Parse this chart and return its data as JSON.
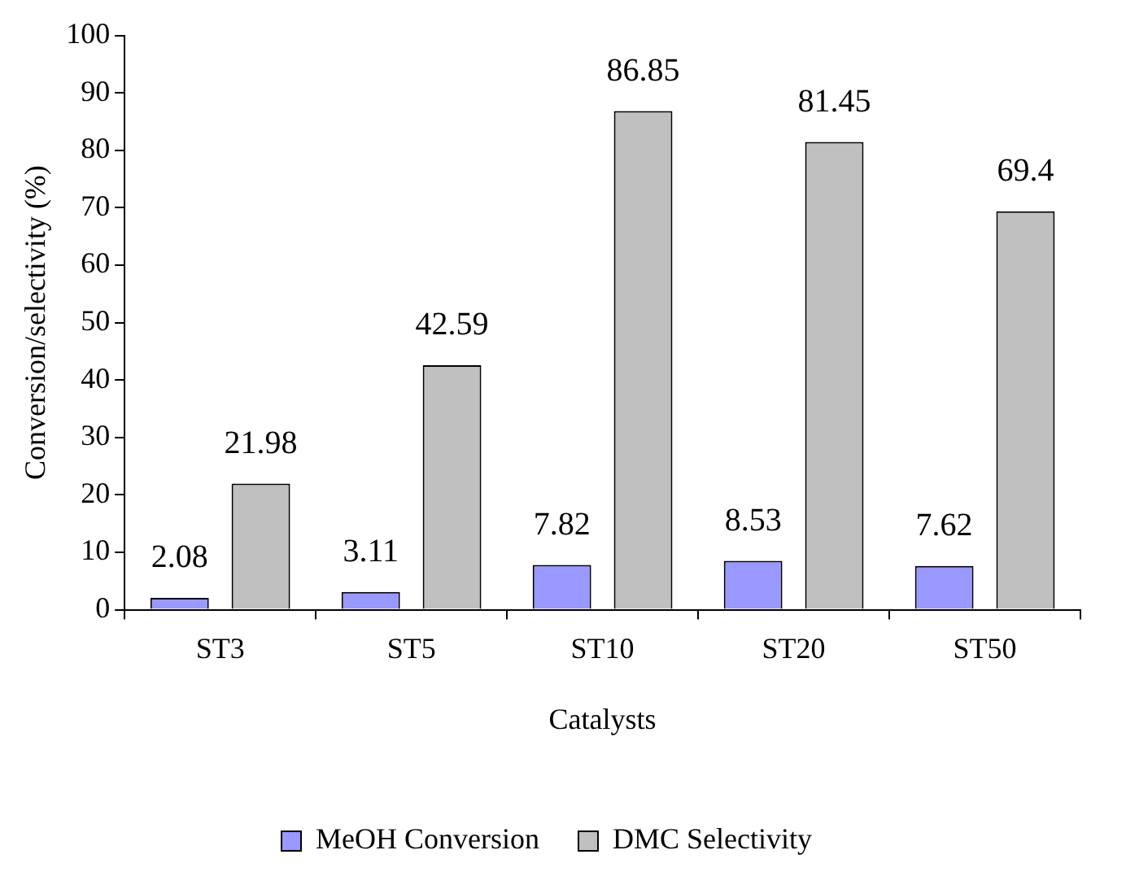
{
  "chart_data": {
    "type": "bar",
    "xlabel": "Catalysts",
    "ylabel": "Conversion/selectivity (%)",
    "categories": [
      "ST3",
      "ST5",
      "ST10",
      "ST20",
      "ST50"
    ],
    "series": [
      {
        "name": "MeOH Conversion",
        "color": "#9999ff",
        "values": [
          2.08,
          3.11,
          7.82,
          8.53,
          7.62
        ]
      },
      {
        "name": "DMC Selectivity",
        "color": "#c0c0c0",
        "values": [
          21.98,
          42.59,
          86.85,
          81.45,
          69.4
        ]
      }
    ],
    "ylim": [
      0,
      100
    ],
    "yticks": [
      0,
      10,
      20,
      30,
      40,
      50,
      60,
      70,
      80,
      90,
      100
    ],
    "grid": false,
    "legend": "bottom",
    "data_labels": true
  }
}
